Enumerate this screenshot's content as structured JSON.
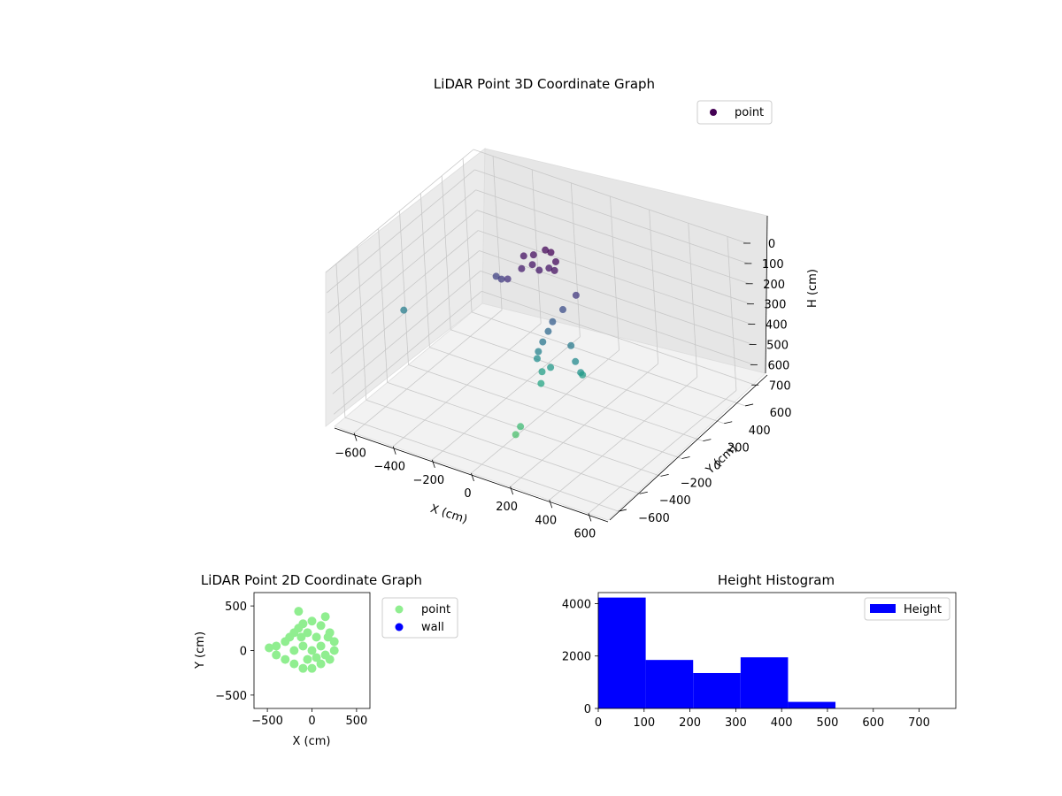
{
  "chart_data": [
    {
      "type": "scatter",
      "title": "LiDAR Point 3D Coordinate Graph",
      "xlabel": "X (cm)",
      "ylabel": "Y (cm)",
      "zlabel": "H (cm)",
      "xlim": [
        -700,
        700
      ],
      "ylim": [
        -700,
        700
      ],
      "zlim": [
        0,
        760
      ],
      "z_inverted": true,
      "x_ticks": [
        -600,
        -400,
        -200,
        0,
        200,
        400,
        600
      ],
      "y_ticks": [
        -600,
        -400,
        -200,
        0,
        200,
        400,
        600
      ],
      "z_ticks": [
        0,
        100,
        200,
        300,
        400,
        500,
        600,
        700
      ],
      "colormap": "viridis",
      "legend": {
        "placement": "top-right",
        "entries": [
          {
            "label": "point",
            "color": "#440154"
          }
        ]
      },
      "series": [
        {
          "name": "point",
          "note_points": "dense cloud; representative samples",
          "points": [
            [
              -60,
              80,
              40
            ],
            [
              -20,
              120,
              20
            ],
            [
              20,
              100,
              10
            ],
            [
              60,
              70,
              30
            ],
            [
              -100,
              60,
              50
            ],
            [
              -40,
              30,
              60
            ],
            [
              0,
              20,
              70
            ],
            [
              40,
              40,
              55
            ],
            [
              80,
              20,
              45
            ],
            [
              -80,
              0,
              80
            ],
            [
              -150,
              -10,
              150
            ],
            [
              -200,
              20,
              180
            ],
            [
              -250,
              60,
              200
            ],
            [
              150,
              80,
              170
            ],
            [
              100,
              40,
              240
            ],
            [
              60,
              10,
              300
            ],
            [
              40,
              0,
              350
            ],
            [
              20,
              -20,
              400
            ],
            [
              0,
              -30,
              450
            ],
            [
              -20,
              -10,
              500
            ],
            [
              30,
              20,
              540
            ],
            [
              -10,
              10,
              570
            ],
            [
              10,
              -40,
              600
            ],
            [
              120,
              60,
              420
            ],
            [
              150,
              40,
              480
            ],
            [
              180,
              30,
              520
            ],
            [
              160,
              80,
              560
            ],
            [
              -650,
              -100,
              430
            ],
            [
              40,
              -300,
              690
            ],
            [
              30,
              -330,
              720
            ]
          ]
        }
      ]
    },
    {
      "type": "scatter",
      "title": "LiDAR Point 2D Coordinate Graph",
      "xlabel": "X (cm)",
      "ylabel": "Y (cm)",
      "xlim": [
        -650,
        650
      ],
      "ylim": [
        -650,
        650
      ],
      "x_ticks": [
        -500,
        0,
        500
      ],
      "y_ticks": [
        -500,
        0,
        500
      ],
      "legend": {
        "placement": "outside-right",
        "entries": [
          {
            "label": "point",
            "color": "#90ee90"
          },
          {
            "label": "wall",
            "color": "#0000ff"
          }
        ]
      },
      "series": [
        {
          "name": "point",
          "color": "#90ee90",
          "points": [
            [
              -150,
              440
            ],
            [
              150,
              380
            ],
            [
              -100,
              300
            ],
            [
              0,
              330
            ],
            [
              100,
              280
            ],
            [
              200,
              200
            ],
            [
              250,
              100
            ],
            [
              250,
              0
            ],
            [
              200,
              -100
            ],
            [
              100,
              -150
            ],
            [
              0,
              -200
            ],
            [
              -100,
              -200
            ],
            [
              -200,
              -150
            ],
            [
              -300,
              -100
            ],
            [
              -400,
              -50
            ],
            [
              -480,
              30
            ],
            [
              -400,
              50
            ],
            [
              -300,
              100
            ],
            [
              -250,
              150
            ],
            [
              -200,
              200
            ],
            [
              -150,
              250
            ],
            [
              -50,
              200
            ],
            [
              50,
              150
            ],
            [
              100,
              50
            ],
            [
              0,
              0
            ],
            [
              -100,
              50
            ],
            [
              -200,
              0
            ],
            [
              150,
              -50
            ],
            [
              -50,
              -100
            ],
            [
              50,
              -80
            ],
            [
              180,
              150
            ],
            [
              -120,
              150
            ]
          ]
        },
        {
          "name": "wall",
          "color": "#0000ff",
          "points": []
        }
      ]
    },
    {
      "type": "bar",
      "title": "Height Histogram",
      "xlim": [
        0,
        780
      ],
      "ylim": [
        0,
        4420
      ],
      "x_ticks": [
        0,
        100,
        200,
        300,
        400,
        500,
        600,
        700
      ],
      "y_ticks": [
        0,
        2000,
        4000
      ],
      "bin_edges": [
        0,
        103.5,
        207,
        310.5,
        414,
        517.5,
        621,
        724.5
      ],
      "values": [
        4230,
        1850,
        1350,
        1950,
        250,
        0,
        0
      ],
      "color": "#0000ff",
      "legend": {
        "placement": "top-right",
        "entries": [
          {
            "label": "Height",
            "color": "#0000ff"
          }
        ]
      }
    }
  ]
}
